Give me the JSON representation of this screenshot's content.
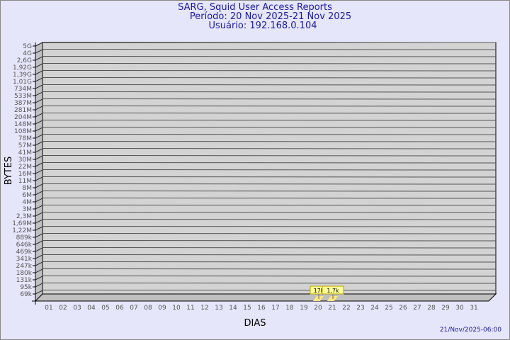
{
  "header": {
    "title": "SARG, Squid User Access Reports",
    "period": "Período: 20 Nov 2025-21 Nov 2025",
    "user": "Usuário: 192.168.0.104"
  },
  "footer": {
    "generated": "21/Nov/2025-06:00"
  },
  "colors": {
    "background": "#e6e6fa",
    "title": "#1a1a9c",
    "wall": "#d3d3d3",
    "bar": "#ffe680",
    "label_box": "#ffff99"
  },
  "chart_data": {
    "type": "bar",
    "title": "",
    "xlabel": "DIAS",
    "ylabel": "BYTES",
    "yscale": "log",
    "ytick_labels": [
      "5G",
      "4G",
      "2,6G",
      "1,92G",
      "1,39G",
      "1,01G",
      "734M",
      "533M",
      "387M",
      "281M",
      "204M",
      "148M",
      "108M",
      "78M",
      "57M",
      "41M",
      "30M",
      "22M",
      "16M",
      "11M",
      "8M",
      "6M",
      "4M",
      "3M",
      "2,3M",
      "1,69M",
      "1,22M",
      "889k",
      "646k",
      "469k",
      "341k",
      "247k",
      "180k",
      "131k",
      "95k",
      "69k"
    ],
    "categories": [
      "01",
      "02",
      "03",
      "04",
      "05",
      "06",
      "07",
      "08",
      "09",
      "10",
      "11",
      "12",
      "13",
      "14",
      "15",
      "16",
      "17",
      "18",
      "19",
      "20",
      "21",
      "22",
      "23",
      "24",
      "25",
      "26",
      "27",
      "28",
      "29",
      "30",
      "31"
    ],
    "bars": [
      {
        "day": "20",
        "value": 17000,
        "label": "17k"
      },
      {
        "day": "21",
        "value": 1700,
        "label": "1,7k"
      }
    ],
    "grid": true
  }
}
